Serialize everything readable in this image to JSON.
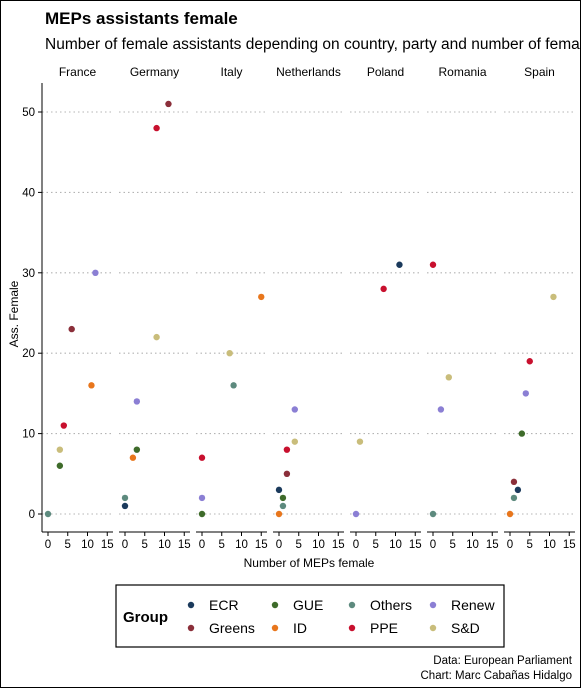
{
  "chart_data": {
    "type": "scatter",
    "title": "MEPs assistants female",
    "subtitle": "Number of female assistants depending on country, party and number of female MEPs",
    "xlabel": "Number of MEPs female",
    "ylabel": "Ass. Female",
    "xlim": [
      0,
      15
    ],
    "ylim": [
      0,
      52
    ],
    "x_ticks": [
      0,
      5,
      10,
      15
    ],
    "y_ticks": [
      0,
      10,
      20,
      30,
      40,
      50
    ],
    "grid": "horizontal dotted",
    "facets": [
      "France",
      "Germany",
      "Italy",
      "Netherlands",
      "Poland",
      "Romania",
      "Spain"
    ],
    "legend": {
      "title": "Group",
      "position": "bottom",
      "entries": [
        {
          "name": "ECR",
          "color": "#1b3a5c"
        },
        {
          "name": "Greens",
          "color": "#8b2f3a"
        },
        {
          "name": "GUE",
          "color": "#3e6b2a"
        },
        {
          "name": "ID",
          "color": "#e8761c"
        },
        {
          "name": "Others",
          "color": "#5d8a7e"
        },
        {
          "name": "PPE",
          "color": "#c8102e"
        },
        {
          "name": "Renew",
          "color": "#8b7fd4"
        },
        {
          "name": "S&D",
          "color": "#c9bd7b"
        }
      ]
    },
    "points": [
      {
        "facet": "France",
        "group": "Others",
        "x": 0,
        "y": 0
      },
      {
        "facet": "France",
        "group": "GUE",
        "x": 3,
        "y": 6
      },
      {
        "facet": "France",
        "group": "S&D",
        "x": 3,
        "y": 8
      },
      {
        "facet": "France",
        "group": "PPE",
        "x": 4,
        "y": 11
      },
      {
        "facet": "France",
        "group": "ID",
        "x": 11,
        "y": 16
      },
      {
        "facet": "France",
        "group": "Greens",
        "x": 6,
        "y": 23
      },
      {
        "facet": "France",
        "group": "Renew",
        "x": 12,
        "y": 30
      },
      {
        "facet": "Germany",
        "group": "ECR",
        "x": 0,
        "y": 1
      },
      {
        "facet": "Germany",
        "group": "Others",
        "x": 0,
        "y": 2
      },
      {
        "facet": "Germany",
        "group": "ID",
        "x": 2,
        "y": 7
      },
      {
        "facet": "Germany",
        "group": "GUE",
        "x": 3,
        "y": 8
      },
      {
        "facet": "Germany",
        "group": "Renew",
        "x": 3,
        "y": 14
      },
      {
        "facet": "Germany",
        "group": "S&D",
        "x": 8,
        "y": 22
      },
      {
        "facet": "Germany",
        "group": "PPE",
        "x": 8,
        "y": 48
      },
      {
        "facet": "Germany",
        "group": "Greens",
        "x": 11,
        "y": 51
      },
      {
        "facet": "Italy",
        "group": "GUE",
        "x": 0,
        "y": 0
      },
      {
        "facet": "Italy",
        "group": "Renew",
        "x": 0,
        "y": 2
      },
      {
        "facet": "Italy",
        "group": "PPE",
        "x": 0,
        "y": 7
      },
      {
        "facet": "Italy",
        "group": "Others",
        "x": 8,
        "y": 16
      },
      {
        "facet": "Italy",
        "group": "S&D",
        "x": 7,
        "y": 20
      },
      {
        "facet": "Italy",
        "group": "ID",
        "x": 15,
        "y": 27
      },
      {
        "facet": "Netherlands",
        "group": "ID",
        "x": 0,
        "y": 0
      },
      {
        "facet": "Netherlands",
        "group": "Others",
        "x": 1,
        "y": 1
      },
      {
        "facet": "Netherlands",
        "group": "GUE",
        "x": 1,
        "y": 2
      },
      {
        "facet": "Netherlands",
        "group": "ECR",
        "x": 0,
        "y": 3
      },
      {
        "facet": "Netherlands",
        "group": "Greens",
        "x": 2,
        "y": 5
      },
      {
        "facet": "Netherlands",
        "group": "PPE",
        "x": 2,
        "y": 8
      },
      {
        "facet": "Netherlands",
        "group": "S&D",
        "x": 4,
        "y": 9
      },
      {
        "facet": "Netherlands",
        "group": "Renew",
        "x": 4,
        "y": 13
      },
      {
        "facet": "Poland",
        "group": "Renew",
        "x": 0,
        "y": 0
      },
      {
        "facet": "Poland",
        "group": "S&D",
        "x": 1,
        "y": 9
      },
      {
        "facet": "Poland",
        "group": "PPE",
        "x": 7,
        "y": 28
      },
      {
        "facet": "Poland",
        "group": "ECR",
        "x": 11,
        "y": 31
      },
      {
        "facet": "Romania",
        "group": "Others",
        "x": 0,
        "y": 0
      },
      {
        "facet": "Romania",
        "group": "Renew",
        "x": 2,
        "y": 13
      },
      {
        "facet": "Romania",
        "group": "S&D",
        "x": 4,
        "y": 17
      },
      {
        "facet": "Romania",
        "group": "PPE",
        "x": 0,
        "y": 31
      },
      {
        "facet": "Spain",
        "group": "ID",
        "x": 0,
        "y": 0
      },
      {
        "facet": "Spain",
        "group": "Others",
        "x": 1,
        "y": 2
      },
      {
        "facet": "Spain",
        "group": "ECR",
        "x": 2,
        "y": 3
      },
      {
        "facet": "Spain",
        "group": "Greens",
        "x": 1,
        "y": 4
      },
      {
        "facet": "Spain",
        "group": "GUE",
        "x": 3,
        "y": 10
      },
      {
        "facet": "Spain",
        "group": "Renew",
        "x": 4,
        "y": 15
      },
      {
        "facet": "Spain",
        "group": "PPE",
        "x": 5,
        "y": 19
      },
      {
        "facet": "Spain",
        "group": "S&D",
        "x": 11,
        "y": 27
      }
    ],
    "caption": [
      "Data: European Parliament",
      "Chart: Marc Cabañas Hidalgo"
    ]
  }
}
